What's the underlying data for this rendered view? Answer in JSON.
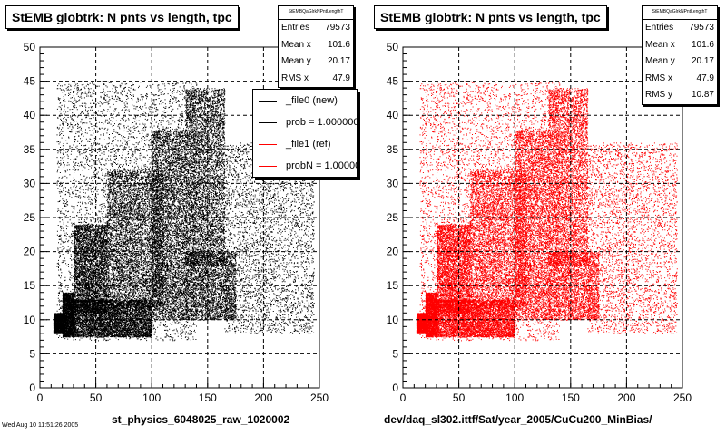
{
  "chart_data": [
    {
      "type": "scatter",
      "title": "StEMB globtrk: N pnts vs length, tpc",
      "xlabel": "st_physics_6048025_raw_1020002",
      "ylabel": "",
      "xlim": [
        0,
        250
      ],
      "ylim": [
        0,
        50
      ],
      "xticks": [
        0,
        50,
        100,
        150,
        200,
        250
      ],
      "yticks": [
        0,
        5,
        10,
        15,
        20,
        25,
        30,
        35,
        40,
        45,
        50
      ],
      "grid": true,
      "color": "#000000",
      "stats": {
        "name": "StEMBQaGlrkNPntLengthT",
        "rows": [
          {
            "label": "Entries",
            "value": "79573"
          },
          {
            "label": "Mean x",
            "value": "101.6"
          },
          {
            "label": "Mean y",
            "value": "20.17"
          },
          {
            "label": "RMS x",
            "value": "47.9"
          }
        ]
      },
      "legend": {
        "placement": "top-right",
        "entries": [
          {
            "label": "_file0 (new)",
            "color": "#000000"
          },
          {
            "label": "prob = 1.000000",
            "color": "#000000"
          },
          {
            "label": "_file1 (ref)",
            "color": "#ff0000"
          },
          {
            "label": "probN = 1.000000",
            "color": "#ff0000"
          }
        ]
      },
      "density": [
        {
          "x": [
            12,
            20
          ],
          "y": [
            8,
            11
          ],
          "n": 1500
        },
        {
          "x": [
            20,
            30
          ],
          "y": [
            7.5,
            14
          ],
          "n": 2200
        },
        {
          "x": [
            30,
            100
          ],
          "y": [
            7.5,
            13
          ],
          "n": 7500
        },
        {
          "x": [
            30,
            60
          ],
          "y": [
            11,
            24
          ],
          "n": 4000
        },
        {
          "x": [
            60,
            110
          ],
          "y": [
            12,
            32
          ],
          "n": 5000
        },
        {
          "x": [
            100,
            130
          ],
          "y": [
            10,
            38
          ],
          "n": 4500
        },
        {
          "x": [
            130,
            165
          ],
          "y": [
            18,
            44
          ],
          "n": 7000
        },
        {
          "x": [
            130,
            175
          ],
          "y": [
            10,
            20
          ],
          "n": 3000
        },
        {
          "x": [
            15,
            140
          ],
          "y": [
            7,
            45
          ],
          "n": 9000
        },
        {
          "x": [
            165,
            245
          ],
          "y": [
            8,
            36
          ],
          "n": 3500
        }
      ]
    },
    {
      "type": "scatter",
      "title": "StEMB globtrk: N pnts vs length, tpc",
      "xlabel": "dev/daq_sl302.ittf/Sat/year_2005/CuCu200_MinBias/",
      "ylabel": "",
      "xlim": [
        0,
        250
      ],
      "ylim": [
        0,
        50
      ],
      "xticks": [
        0,
        50,
        100,
        150,
        200,
        250
      ],
      "yticks": [
        0,
        5,
        10,
        15,
        20,
        25,
        30,
        35,
        40,
        45,
        50
      ],
      "grid": true,
      "color": "#ff0000",
      "stats": {
        "name": "StEMBQaGlrkNPntLengthT",
        "rows": [
          {
            "label": "Entries",
            "value": "79573"
          },
          {
            "label": "Mean x",
            "value": "101.6"
          },
          {
            "label": "Mean y",
            "value": "20.17"
          },
          {
            "label": "RMS x",
            "value": "47.9"
          },
          {
            "label": "RMS y",
            "value": "10.87"
          }
        ]
      },
      "density": [
        {
          "x": [
            12,
            20
          ],
          "y": [
            8,
            11
          ],
          "n": 1500
        },
        {
          "x": [
            20,
            30
          ],
          "y": [
            7.5,
            14
          ],
          "n": 2200
        },
        {
          "x": [
            30,
            100
          ],
          "y": [
            7.5,
            13
          ],
          "n": 7500
        },
        {
          "x": [
            30,
            60
          ],
          "y": [
            11,
            24
          ],
          "n": 4000
        },
        {
          "x": [
            60,
            110
          ],
          "y": [
            12,
            32
          ],
          "n": 5000
        },
        {
          "x": [
            100,
            130
          ],
          "y": [
            10,
            38
          ],
          "n": 4500
        },
        {
          "x": [
            130,
            165
          ],
          "y": [
            18,
            44
          ],
          "n": 7000
        },
        {
          "x": [
            130,
            175
          ],
          "y": [
            10,
            20
          ],
          "n": 3000
        },
        {
          "x": [
            15,
            140
          ],
          "y": [
            7,
            45
          ],
          "n": 9000
        },
        {
          "x": [
            165,
            245
          ],
          "y": [
            8,
            36
          ],
          "n": 3500
        }
      ]
    }
  ],
  "footer": "Wed Aug 10 11:51:26 2005"
}
